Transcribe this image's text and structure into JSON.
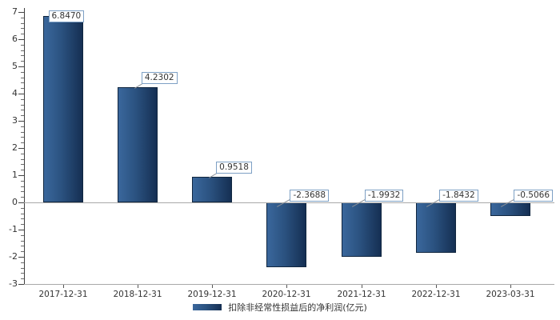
{
  "chart_data": {
    "type": "bar",
    "categories": [
      "2017-12-31",
      "2018-12-31",
      "2019-12-31",
      "2020-12-31",
      "2021-12-31",
      "2022-12-31",
      "2023-03-31"
    ],
    "values": [
      6.847,
      4.2302,
      0.9518,
      -2.3688,
      -1.9932,
      -1.8432,
      -0.5066
    ],
    "value_labels": [
      "6.8470",
      "4.2302",
      "0.9518",
      "-2.3688",
      "-1.9932",
      "-1.8432",
      "-0.5066"
    ],
    "legend": "扣除非经常性损益后的净利润(亿元)",
    "title": "",
    "xlabel": "",
    "ylabel": "",
    "ylim": [
      -3,
      7
    ],
    "y_major_ticks": [
      7,
      6,
      5,
      4,
      3,
      2,
      1,
      0,
      -1,
      -2,
      -3
    ],
    "y_minor_interval": 0.2,
    "grid": "off",
    "legend_position": "bottom-center"
  },
  "colors": {
    "bar_gradient_left": "#3a679c",
    "bar_gradient_mid": "#2b5280",
    "bar_gradient_right": "#152f53",
    "bar_border": "#10263f",
    "y_axis_line": "#3f3f3f",
    "baseline": "#a9a9a9",
    "zero_line": "#a9a9a9",
    "major_tick": "#444444",
    "minor_tick": "#6e6e6e",
    "x_tick": "#555555",
    "text": "#333333",
    "label_box_border": "#7da0c5",
    "label_box_bg": "#ffffff",
    "connector": "#8a8f96"
  }
}
